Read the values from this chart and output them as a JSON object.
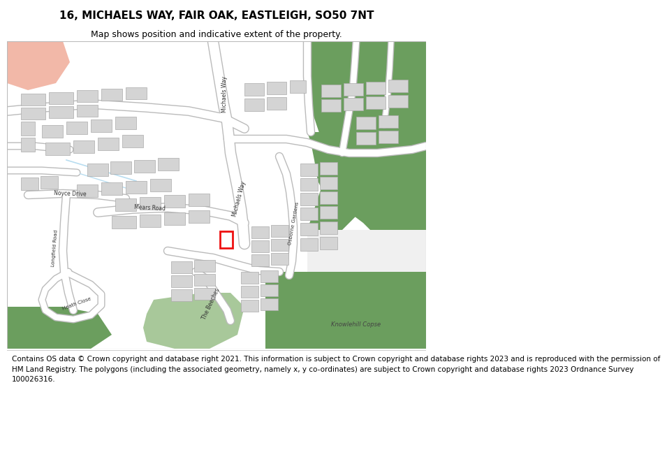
{
  "title": "16, MICHAELS WAY, FAIR OAK, EASTLEIGH, SO50 7NT",
  "subtitle": "Map shows position and indicative extent of the property.",
  "footer_line1": "Contains OS data © Crown copyright and database right 2021. This information is subject to Crown copyright and database rights 2023 and is reproduced with the permission of",
  "footer_line2": "HM Land Registry. The polygons (including the associated geometry, namely x, y co-ordinates) are subject to Crown copyright and database rights 2023 Ordnance Survey 100026316.",
  "bg_color": "#ffffff",
  "map_bg": "#f0f0f0",
  "building_color": "#d4d4d4",
  "building_edge": "#aaaaaa",
  "road_color": "#ffffff",
  "road_edge": "#bbbbbb",
  "green_dark": "#6b9e5e",
  "green_light": "#a8c89a",
  "salmon_color": "#f2b8a8",
  "highlight_color": "#ee1111",
  "water_color": "#b8ddf0",
  "title_fontsize": 11,
  "subtitle_fontsize": 9,
  "footer_fontsize": 7.5
}
